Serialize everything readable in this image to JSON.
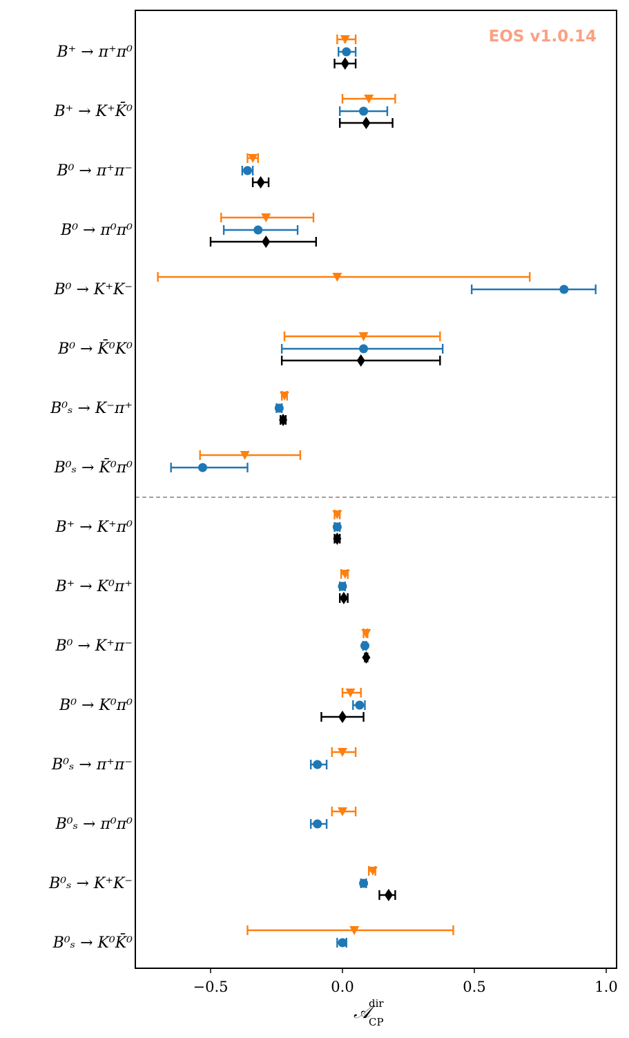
{
  "chart_data": {
    "type": "scatter",
    "xlabel": "𝒜",
    "xlabel_superscript": "dir",
    "xlabel_subscript": "CP",
    "xlim": [
      -0.8,
      1.03
    ],
    "xticks": [
      -0.5,
      0.0,
      0.5,
      1.0
    ],
    "xtick_labels": [
      "−0.5",
      "0.0",
      "0.5",
      "1.0"
    ],
    "grid": false,
    "legend": "none",
    "divider_after_row": 8,
    "watermark": "EOS v1.0.14",
    "colors": {
      "orange": "#ff7f0e",
      "blue": "#1f77b4",
      "black": "#000000",
      "divider": "#808080",
      "watermark": "#fba083"
    },
    "series_markers": [
      "triangle-down",
      "circle",
      "diamond"
    ],
    "rows": [
      {
        "label": "B⁺ → π⁺π⁰",
        "orange": {
          "v": 0.01,
          "lo": -0.02,
          "hi": 0.05
        },
        "blue": {
          "v": 0.015,
          "lo": -0.015,
          "hi": 0.05
        },
        "black": {
          "v": 0.01,
          "lo": -0.03,
          "hi": 0.05
        }
      },
      {
        "label": "B⁺ → K⁺K̄⁰",
        "orange": {
          "v": 0.1,
          "lo": 0.0,
          "hi": 0.2
        },
        "blue": {
          "v": 0.08,
          "lo": -0.01,
          "hi": 0.17
        },
        "black": {
          "v": 0.09,
          "lo": -0.01,
          "hi": 0.19
        }
      },
      {
        "label": "B⁰ → π⁺π⁻",
        "orange": {
          "v": -0.34,
          "lo": -0.36,
          "hi": -0.32
        },
        "blue": {
          "v": -0.36,
          "lo": -0.38,
          "hi": -0.34
        },
        "black": {
          "v": -0.31,
          "lo": -0.34,
          "hi": -0.28
        }
      },
      {
        "label": "B⁰ → π⁰π⁰",
        "orange": {
          "v": -0.29,
          "lo": -0.46,
          "hi": -0.11
        },
        "blue": {
          "v": -0.32,
          "lo": -0.45,
          "hi": -0.17
        },
        "black": {
          "v": -0.29,
          "lo": -0.5,
          "hi": -0.1
        }
      },
      {
        "label": "B⁰ → K⁺K⁻",
        "orange": {
          "v": -0.02,
          "lo": -0.7,
          "hi": 0.71
        },
        "blue": {
          "v": 0.84,
          "lo": 0.49,
          "hi": 0.96
        }
      },
      {
        "label": "B⁰ → K̄⁰K⁰",
        "orange": {
          "v": 0.08,
          "lo": -0.22,
          "hi": 0.37
        },
        "blue": {
          "v": 0.08,
          "lo": -0.23,
          "hi": 0.38
        },
        "black": {
          "v": 0.07,
          "lo": -0.23,
          "hi": 0.37
        }
      },
      {
        "label": "B⁰ₛ → K⁻π⁺",
        "orange": {
          "v": -0.22,
          "lo": -0.23,
          "hi": -0.21
        },
        "blue": {
          "v": -0.24,
          "lo": -0.25,
          "hi": -0.23
        },
        "black": {
          "v": -0.225,
          "lo": -0.235,
          "hi": -0.215
        }
      },
      {
        "label": "B⁰ₛ → K̄⁰π⁰",
        "orange": {
          "v": -0.37,
          "lo": -0.54,
          "hi": -0.16
        },
        "blue": {
          "v": -0.53,
          "lo": -0.65,
          "hi": -0.36
        }
      },
      {
        "label": "B⁺ → K⁺π⁰",
        "orange": {
          "v": -0.02,
          "lo": -0.03,
          "hi": -0.01
        },
        "blue": {
          "v": -0.02,
          "lo": -0.03,
          "hi": -0.01
        },
        "black": {
          "v": -0.02,
          "lo": -0.03,
          "hi": -0.01
        }
      },
      {
        "label": "B⁺ → K⁰π⁺",
        "orange": {
          "v": 0.01,
          "lo": -0.005,
          "hi": 0.02
        },
        "blue": {
          "v": 0.0,
          "lo": -0.01,
          "hi": 0.01
        },
        "black": {
          "v": 0.005,
          "lo": -0.01,
          "hi": 0.02
        }
      },
      {
        "label": "B⁰ → K⁺π⁻",
        "orange": {
          "v": 0.09,
          "lo": 0.08,
          "hi": 0.095
        },
        "blue": {
          "v": 0.085,
          "lo": 0.078,
          "hi": 0.09
        },
        "black": {
          "v": 0.09,
          "lo": 0.085,
          "hi": 0.095
        }
      },
      {
        "label": "B⁰ → K⁰π⁰",
        "orange": {
          "v": 0.03,
          "lo": 0.0,
          "hi": 0.07
        },
        "blue": {
          "v": 0.065,
          "lo": 0.04,
          "hi": 0.085
        },
        "black": {
          "v": 0.0,
          "lo": -0.08,
          "hi": 0.08
        }
      },
      {
        "label": "B⁰ₛ → π⁺π⁻",
        "orange": {
          "v": 0.0,
          "lo": -0.04,
          "hi": 0.05
        },
        "blue": {
          "v": -0.095,
          "lo": -0.12,
          "hi": -0.06
        }
      },
      {
        "label": "B⁰ₛ → π⁰π⁰",
        "orange": {
          "v": 0.0,
          "lo": -0.04,
          "hi": 0.05
        },
        "blue": {
          "v": -0.095,
          "lo": -0.12,
          "hi": -0.06
        }
      },
      {
        "label": "B⁰ₛ → K⁺K⁻",
        "orange": {
          "v": 0.115,
          "lo": 0.1,
          "hi": 0.125
        },
        "blue": {
          "v": 0.08,
          "lo": 0.07,
          "hi": 0.09
        },
        "black": {
          "v": 0.175,
          "lo": 0.14,
          "hi": 0.2
        }
      },
      {
        "label": "B⁰ₛ → K⁰K̄⁰",
        "orange": {
          "v": 0.045,
          "lo": -0.36,
          "hi": 0.42
        },
        "blue": {
          "v": 0.0,
          "lo": -0.02,
          "hi": 0.015
        }
      }
    ]
  }
}
